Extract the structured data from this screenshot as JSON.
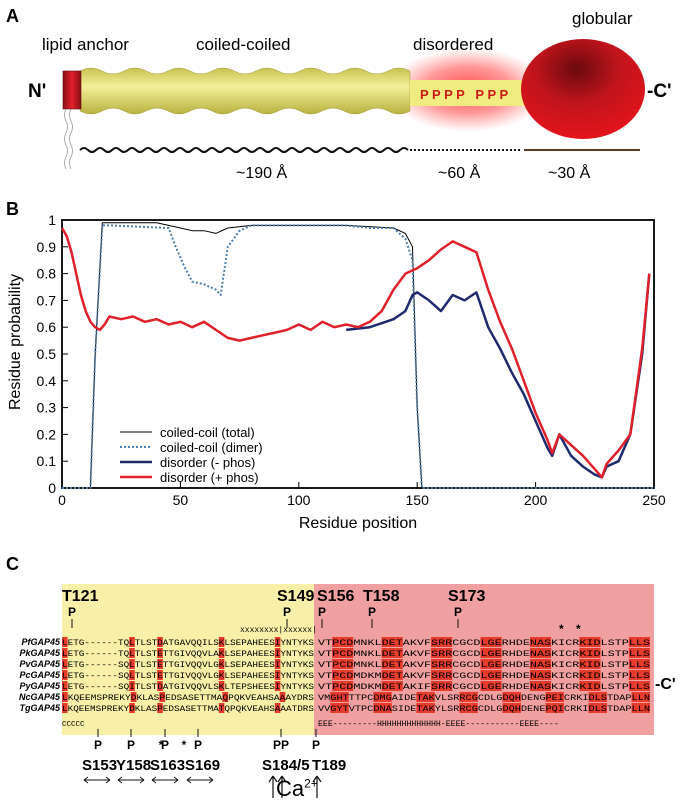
{
  "panel_a": {
    "letter": "A",
    "labels": [
      "lipid anchor",
      "coiled-coiled",
      "disordered",
      "globular"
    ],
    "n_term": "N'",
    "c_term": "-C'",
    "p_letters": "P P P P   P P P",
    "distances": [
      "~190 Å",
      "~60 Å",
      "~30 Å"
    ],
    "colors": {
      "coil": "#ece877",
      "anchor": "#c0202a",
      "globule": "#e0141c",
      "glow": "#ff6a6a",
      "p_text": "#cc1a1a"
    }
  },
  "panel_b": {
    "letter": "B"
  },
  "chart_data": {
    "type": "line",
    "xlabel": "Residue position",
    "ylabel": "Residue probability",
    "xlim": [
      0,
      250
    ],
    "ylim": [
      0,
      1
    ],
    "xticks": [
      "0",
      "50",
      "100",
      "150",
      "200",
      "250"
    ],
    "yticks": [
      "0",
      "0.1",
      "0.2",
      "0.3",
      "0.4",
      "0.5",
      "0.6",
      "0.7",
      "0.8",
      "0.9",
      "1"
    ],
    "legend_position": "bottom-left",
    "series": [
      {
        "name": "coiled-coil (total)",
        "color": "#000000",
        "style": "solid",
        "width": 1,
        "x": [
          0,
          12,
          14,
          17,
          20,
          40,
          50,
          55,
          60,
          65,
          70,
          80,
          100,
          120,
          140,
          145,
          148,
          150,
          152,
          250
        ],
        "y": [
          0,
          0,
          0.5,
          0.99,
          0.99,
          0.99,
          0.97,
          0.96,
          0.96,
          0.95,
          0.97,
          0.98,
          0.98,
          0.98,
          0.97,
          0.95,
          0.9,
          0.3,
          0,
          0
        ]
      },
      {
        "name": "coiled-coil (dimer)",
        "color": "#4a7fb0",
        "style": "dotted",
        "width": 2,
        "x": [
          0,
          12,
          14,
          17,
          20,
          45,
          48,
          52,
          55,
          60,
          65,
          67,
          70,
          75,
          80,
          100,
          120,
          130,
          140,
          145,
          148,
          150,
          152,
          250
        ],
        "y": [
          0,
          0,
          0.5,
          0.98,
          0.98,
          0.97,
          0.9,
          0.82,
          0.77,
          0.76,
          0.74,
          0.72,
          0.9,
          0.96,
          0.98,
          0.98,
          0.98,
          0.97,
          0.97,
          0.93,
          0.85,
          0.3,
          0,
          0
        ]
      },
      {
        "name": "disorder (- phos)",
        "color": "#1f2a6e",
        "style": "solid",
        "width": 2.5,
        "x": [
          120,
          130,
          140,
          145,
          148,
          150,
          155,
          160,
          165,
          170,
          175,
          180,
          185,
          190,
          195,
          200,
          205,
          207,
          210,
          215,
          220,
          225,
          228,
          230,
          235,
          240,
          245,
          248
        ],
        "y": [
          0.59,
          0.6,
          0.63,
          0.66,
          0.72,
          0.73,
          0.7,
          0.66,
          0.72,
          0.7,
          0.73,
          0.6,
          0.52,
          0.43,
          0.35,
          0.25,
          0.15,
          0.12,
          0.2,
          0.12,
          0.08,
          0.05,
          0.04,
          0.08,
          0.1,
          0.2,
          0.5,
          0.8
        ]
      },
      {
        "name": "disorder (+ phos)",
        "color": "#e0202a",
        "style": "solid",
        "width": 2.5,
        "x": [
          0,
          2,
          4,
          6,
          8,
          10,
          12,
          14,
          16,
          18,
          20,
          25,
          30,
          35,
          40,
          45,
          50,
          55,
          60,
          65,
          70,
          75,
          80,
          85,
          90,
          95,
          100,
          105,
          110,
          115,
          120,
          125,
          130,
          135,
          140,
          145,
          150,
          155,
          160,
          165,
          170,
          175,
          180,
          185,
          190,
          195,
          200,
          205,
          207,
          210,
          215,
          220,
          225,
          228,
          230,
          235,
          240,
          245,
          248
        ],
        "y": [
          0.97,
          0.94,
          0.88,
          0.8,
          0.72,
          0.66,
          0.62,
          0.6,
          0.59,
          0.61,
          0.64,
          0.63,
          0.64,
          0.62,
          0.63,
          0.61,
          0.62,
          0.6,
          0.62,
          0.59,
          0.56,
          0.55,
          0.56,
          0.57,
          0.58,
          0.59,
          0.61,
          0.59,
          0.62,
          0.6,
          0.61,
          0.6,
          0.62,
          0.66,
          0.74,
          0.8,
          0.82,
          0.85,
          0.89,
          0.92,
          0.9,
          0.88,
          0.74,
          0.62,
          0.52,
          0.4,
          0.28,
          0.18,
          0.13,
          0.2,
          0.16,
          0.12,
          0.07,
          0.04,
          0.09,
          0.14,
          0.2,
          0.52,
          0.8
        ]
      }
    ]
  },
  "panel_c": {
    "letter": "C",
    "top_sites": [
      "T121",
      "S149",
      "S156",
      "T158",
      "S173"
    ],
    "xline": "xxxxxxxx|xxxxxx|",
    "stars_top": [
      "*",
      "*"
    ],
    "species": [
      "PfGAP45",
      "PkGAP45",
      "PvGAP45",
      "PcGAP45",
      "PyGAP45",
      "NcGAP45",
      "TgGAP45"
    ],
    "seq_left": [
      "LETG------TQLTLSTDATGAVQQILSKLSEPAHEESIYNTYKS",
      "LETG------TQLTLSTETTGIVQQVLAKLSEPAHEESIYNTYKS",
      "LETG------SQLTLSTETTGIVQQVLGKLSEPAHEESIYNTYKS",
      "LETG------SQLTLSTETTGIVQQVLGKLSEPAHEESIYNTYKS",
      "LETG------SQITLSTDATGIVQQVLSKLTEPSHEESIYNTYKS",
      "LKQEEMSPREKYDKLASPEDSASETTMAQPQKVEAHSAAAYDRS",
      "LKQEEMSPREKYDKLASPEDSASETTMATQPQKVEAHSAAATDRS"
    ],
    "seq_right": [
      "VTPCDMNKLDETAKVFSRRCGCDLGERHDENASKICRKIDLSTPLLS",
      "VTPCDMNKLDETAKVFSRRCGCDLGERHDENASKICRKIDLSTPLLS",
      "VTPCDMNKLDETAKVFSRRCGCDLGERHDENASKICRKIDLSTPLLS",
      "VTPCDMDKMDETAKVFSRRCGCDLGERHDENASKICRKIDLSTPLLS",
      "VTPCDMDKMDETAKIFSRRCGCDLGERHDENASKICRKIDLSTPLLS",
      "VMGHTTTPCDMGAIDETAKVLSRRCGCDLGDQHDENGPEICRKIDLSTDAPLLN",
      "VVGYTVTPCDNASIDETAKYLSRRCGCDLGDQHDENEPQICRKIDLSTDAPLLN"
    ],
    "c_term": "-C'",
    "ccccc": "CCCCC",
    "struct": "EEE---------HHHHHHHHHHHHH-EEEE-----------EEEE----",
    "bottom_sites": [
      "S153",
      "Y158",
      "S163",
      "S169",
      "S184/5",
      "T189"
    ],
    "ca_label": "Ca",
    "ca_sup": "2+",
    "p_mark": "P",
    "star": "*"
  }
}
